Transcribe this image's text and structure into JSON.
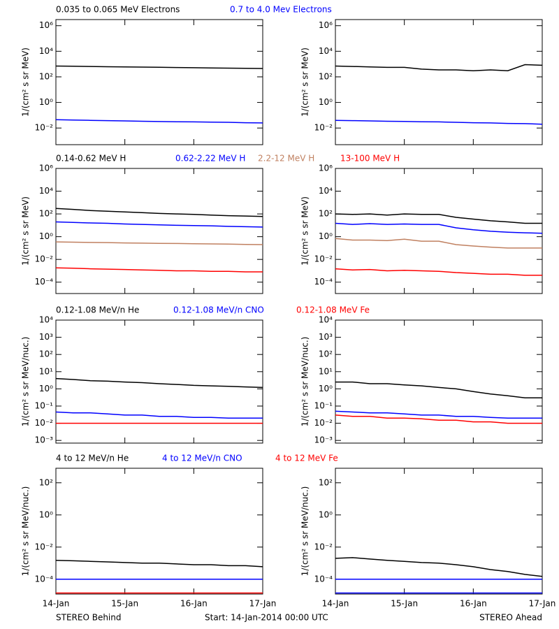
{
  "chart_data": [
    {
      "type": "line",
      "y_label": "1/(cm² s sr MeV)",
      "log_y": true,
      "ylim": [
        0.0005,
        3000000
      ],
      "yticks": [
        {
          "value": 0.01,
          "label": "10⁻²"
        },
        {
          "value": 1,
          "label": "10⁰"
        },
        {
          "value": 100,
          "label": "10²"
        },
        {
          "value": 10000,
          "label": "10⁴"
        },
        {
          "value": 1000000,
          "label": "10⁶"
        }
      ],
      "xlim": [
        0,
        3
      ],
      "xticks": [
        0,
        1,
        2,
        3
      ],
      "x": [
        0,
        0.25,
        0.5,
        0.75,
        1,
        1.25,
        1.5,
        1.75,
        2,
        2.25,
        2.5,
        2.75,
        3
      ],
      "series": [
        {
          "name": "0.035 to 0.065 MeV Electrons",
          "color": "#000000",
          "values": [
            700,
            680,
            650,
            620,
            600,
            580,
            560,
            540,
            520,
            500,
            480,
            460,
            450
          ]
        },
        {
          "name": "0.7 to 4.0 Mev Electrons",
          "color": "#0000ff",
          "values": [
            0.045,
            0.042,
            0.04,
            0.038,
            0.036,
            0.034,
            0.032,
            0.031,
            0.03,
            0.029,
            0.028,
            0.026,
            0.025
          ]
        }
      ]
    },
    {
      "type": "line",
      "y_label": "1/(cm² s sr MeV)",
      "log_y": true,
      "ylim": [
        0.0005,
        3000000
      ],
      "yticks": [
        {
          "value": 0.01,
          "label": "10⁻²"
        },
        {
          "value": 1,
          "label": "10⁰"
        },
        {
          "value": 100,
          "label": "10²"
        },
        {
          "value": 10000,
          "label": "10⁴"
        },
        {
          "value": 1000000,
          "label": "10⁶"
        }
      ],
      "xlim": [
        0,
        3
      ],
      "xticks": [
        0,
        1,
        2,
        3
      ],
      "x": [
        0,
        0.25,
        0.5,
        0.75,
        1,
        1.25,
        1.5,
        1.75,
        2,
        2.25,
        2.5,
        2.75,
        3
      ],
      "series": [
        {
          "color": "#000000",
          "values": [
            700,
            650,
            600,
            550,
            550,
            400,
            350,
            350,
            300,
            350,
            300,
            900,
            800
          ]
        },
        {
          "color": "#0000ff",
          "values": [
            0.04,
            0.038,
            0.036,
            0.034,
            0.033,
            0.031,
            0.03,
            0.028,
            0.026,
            0.025,
            0.023,
            0.022,
            0.02
          ]
        }
      ]
    },
    {
      "type": "line",
      "y_label": "1/(cm² s sr MeV)",
      "log_y": true,
      "ylim": [
        1e-05,
        1000000
      ],
      "yticks": [
        {
          "value": 0.0001,
          "label": "10⁻⁴"
        },
        {
          "value": 0.01,
          "label": "10⁻²"
        },
        {
          "value": 1,
          "label": "10⁰"
        },
        {
          "value": 100,
          "label": "10²"
        },
        {
          "value": 10000,
          "label": "10⁴"
        },
        {
          "value": 1000000,
          "label": "10⁶"
        }
      ],
      "xlim": [
        0,
        3
      ],
      "xticks": [
        0,
        1,
        2,
        3
      ],
      "x": [
        0,
        0.25,
        0.5,
        0.75,
        1,
        1.25,
        1.5,
        1.75,
        2,
        2.25,
        2.5,
        2.75,
        3
      ],
      "series": [
        {
          "name": "0.14-0.62 MeV H",
          "color": "#000000",
          "values": [
            300,
            250,
            200,
            170,
            150,
            130,
            110,
            100,
            90,
            80,
            70,
            65,
            60
          ]
        },
        {
          "name": "0.62-2.22 MeV H",
          "color": "#0000ff",
          "values": [
            20,
            18,
            16,
            15,
            13,
            12,
            11,
            10,
            9.5,
            9,
            8,
            7.5,
            7
          ]
        },
        {
          "name": "2.2-12 MeV H",
          "color": "#c08060",
          "values": [
            0.35,
            0.33,
            0.31,
            0.3,
            0.28,
            0.27,
            0.26,
            0.25,
            0.24,
            0.23,
            0.22,
            0.21,
            0.2
          ]
        },
        {
          "name": "13-100 MeV H",
          "color": "#ff0000",
          "values": [
            0.0018,
            0.0017,
            0.0015,
            0.0014,
            0.0013,
            0.0012,
            0.0011,
            0.001,
            0.001,
            0.0009,
            0.0009,
            0.0008,
            0.0008
          ]
        }
      ]
    },
    {
      "type": "line",
      "y_label": "1/(cm² s sr MeV)",
      "log_y": true,
      "ylim": [
        1e-05,
        1000000
      ],
      "yticks": [
        {
          "value": 0.0001,
          "label": "10⁻⁴"
        },
        {
          "value": 0.01,
          "label": "10⁻²"
        },
        {
          "value": 1,
          "label": "10⁰"
        },
        {
          "value": 100,
          "label": "10²"
        },
        {
          "value": 10000,
          "label": "10⁴"
        },
        {
          "value": 1000000,
          "label": "10⁶"
        }
      ],
      "xlim": [
        0,
        3
      ],
      "xticks": [
        0,
        1,
        2,
        3
      ],
      "x": [
        0,
        0.25,
        0.5,
        0.75,
        1,
        1.25,
        1.5,
        1.75,
        2,
        2.25,
        2.5,
        2.75,
        3
      ],
      "series": [
        {
          "color": "#000000",
          "values": [
            100,
            90,
            100,
            80,
            100,
            90,
            90,
            50,
            35,
            25,
            20,
            15,
            15
          ]
        },
        {
          "color": "#0000ff",
          "values": [
            15,
            12,
            14,
            12,
            13,
            12,
            12,
            6,
            4,
            3,
            2.5,
            2.2,
            2
          ]
        },
        {
          "color": "#c08060",
          "values": [
            0.7,
            0.5,
            0.5,
            0.45,
            0.6,
            0.4,
            0.4,
            0.2,
            0.15,
            0.12,
            0.1,
            0.1,
            0.1
          ]
        },
        {
          "color": "#ff0000",
          "values": [
            0.0015,
            0.0012,
            0.0013,
            0.001,
            0.0011,
            0.001,
            0.0009,
            0.0007,
            0.0006,
            0.0005,
            0.0005,
            0.0004,
            0.0004
          ]
        }
      ]
    },
    {
      "type": "line",
      "y_label": "1/(cm² s sr MeV/nuc.)",
      "log_y": true,
      "ylim": [
        0.0007,
        10000
      ],
      "yticks": [
        {
          "value": 0.001,
          "label": "10⁻³"
        },
        {
          "value": 0.01,
          "label": "10⁻²"
        },
        {
          "value": 0.1,
          "label": "10⁻¹"
        },
        {
          "value": 1,
          "label": "10⁰"
        },
        {
          "value": 10,
          "label": "10¹"
        },
        {
          "value": 100,
          "label": "10²"
        },
        {
          "value": 1000,
          "label": "10³"
        },
        {
          "value": 10000,
          "label": "10⁴"
        }
      ],
      "xlim": [
        0,
        3
      ],
      "xticks": [
        0,
        1,
        2,
        3
      ],
      "x": [
        0,
        0.25,
        0.5,
        0.75,
        1,
        1.25,
        1.5,
        1.75,
        2,
        2.25,
        2.5,
        2.75,
        3
      ],
      "series": [
        {
          "name": "0.12-1.08 MeV/n He",
          "color": "#000000",
          "values": [
            4,
            3.5,
            3,
            2.8,
            2.5,
            2.3,
            2,
            1.8,
            1.6,
            1.5,
            1.4,
            1.3,
            1.2
          ]
        },
        {
          "name": "0.12-1.08 MeV/n CNO",
          "color": "#0000ff",
          "values": [
            0.045,
            0.04,
            0.04,
            0.035,
            0.03,
            0.03,
            0.025,
            0.025,
            0.022,
            0.022,
            0.02,
            0.02,
            0.02
          ]
        },
        {
          "name": "0.12-1.08 MeV Fe",
          "color": "#ff0000",
          "values": [
            0.01,
            0.01,
            0.01,
            0.01,
            0.01,
            0.01,
            0.01,
            0.01,
            0.01,
            0.01,
            0.01,
            0.01,
            0.01
          ]
        }
      ]
    },
    {
      "type": "line",
      "y_label": "1/(cm² s sr MeV/nuc.)",
      "log_y": true,
      "ylim": [
        0.0007,
        10000
      ],
      "yticks": [
        {
          "value": 0.001,
          "label": "10⁻³"
        },
        {
          "value": 0.01,
          "label": "10⁻²"
        },
        {
          "value": 0.1,
          "label": "10⁻¹"
        },
        {
          "value": 1,
          "label": "10⁰"
        },
        {
          "value": 10,
          "label": "10¹"
        },
        {
          "value": 100,
          "label": "10²"
        },
        {
          "value": 1000,
          "label": "10³"
        },
        {
          "value": 10000,
          "label": "10⁴"
        }
      ],
      "xlim": [
        0,
        3
      ],
      "xticks": [
        0,
        1,
        2,
        3
      ],
      "x": [
        0,
        0.25,
        0.5,
        0.75,
        1,
        1.25,
        1.5,
        1.75,
        2,
        2.25,
        2.5,
        2.75,
        3
      ],
      "series": [
        {
          "color": "#000000",
          "values": [
            2.5,
            2.5,
            2,
            2,
            1.7,
            1.5,
            1.2,
            1,
            0.7,
            0.5,
            0.4,
            0.3,
            0.3
          ]
        },
        {
          "color": "#0000ff",
          "values": [
            0.05,
            0.045,
            0.04,
            0.04,
            0.035,
            0.03,
            0.03,
            0.025,
            0.025,
            0.022,
            0.02,
            0.02,
            0.02
          ]
        },
        {
          "color": "#ff0000",
          "values": [
            0.03,
            0.025,
            0.025,
            0.02,
            0.02,
            0.018,
            0.015,
            0.015,
            0.012,
            0.012,
            0.01,
            0.01,
            0.01
          ]
        }
      ]
    },
    {
      "type": "line",
      "y_label": "1/(cm² s sr MeV/nuc.)",
      "log_y": true,
      "ylim": [
        1.2e-05,
        800
      ],
      "yticks": [
        {
          "value": 0.0001,
          "label": "10⁻⁴"
        },
        {
          "value": 0.01,
          "label": "10⁻²"
        },
        {
          "value": 1,
          "label": "10⁰"
        },
        {
          "value": 100,
          "label": "10²"
        }
      ],
      "xlim": [
        0,
        3
      ],
      "xticks": [
        {
          "value": 0,
          "label": "14-Jan"
        },
        {
          "value": 1,
          "label": "15-Jan"
        },
        {
          "value": 2,
          "label": "16-Jan"
        },
        {
          "value": 3,
          "label": "17-Jan"
        }
      ],
      "x": [
        0,
        0.25,
        0.5,
        0.75,
        1,
        1.25,
        1.5,
        1.75,
        2,
        2.25,
        2.5,
        2.75,
        3
      ],
      "series": [
        {
          "name": "4 to 12 MeV/n He",
          "color": "#000000",
          "values": [
            0.0015,
            0.0014,
            0.0013,
            0.0012,
            0.0011,
            0.001,
            0.001,
            0.0009,
            0.0008,
            0.0008,
            0.0007,
            0.0007,
            0.0006
          ]
        },
        {
          "name": "4 to 12 MeV/n CNO",
          "color": "#0000ff",
          "values": [
            0.0001,
            0.0001,
            0.0001,
            0.0001,
            0.0001,
            0.0001,
            0.0001,
            0.0001,
            0.0001,
            0.0001,
            0.0001,
            0.0001,
            0.0001
          ]
        },
        {
          "name": "4 to 12 MeV Fe",
          "color": "#ff0000",
          "values": [
            1.4e-05,
            1.4e-05,
            1.4e-05,
            1.4e-05,
            1.4e-05,
            1.4e-05,
            1.4e-05,
            1.4e-05,
            1.4e-05,
            1.4e-05,
            1.4e-05,
            1.4e-05,
            1.4e-05
          ]
        }
      ]
    },
    {
      "type": "line",
      "y_label": "1/(cm² s sr MeV/nuc.)",
      "log_y": true,
      "ylim": [
        1.2e-05,
        800
      ],
      "yticks": [
        {
          "value": 0.0001,
          "label": "10⁻⁴"
        },
        {
          "value": 0.01,
          "label": "10⁻²"
        },
        {
          "value": 1,
          "label": "10⁰"
        },
        {
          "value": 100,
          "label": "10²"
        }
      ],
      "xlim": [
        0,
        3
      ],
      "xticks": [
        {
          "value": 0,
          "label": "14-Jan"
        },
        {
          "value": 1,
          "label": "15-Jan"
        },
        {
          "value": 2,
          "label": "16-Jan"
        },
        {
          "value": 3,
          "label": "17-Jan"
        }
      ],
      "x": [
        0,
        0.25,
        0.5,
        0.75,
        1,
        1.25,
        1.5,
        1.75,
        2,
        2.25,
        2.5,
        2.75,
        3
      ],
      "series": [
        {
          "color": "#000000",
          "values": [
            0.002,
            0.0022,
            0.0018,
            0.0015,
            0.0013,
            0.0011,
            0.001,
            0.0008,
            0.0006,
            0.0004,
            0.0003,
            0.0002,
            0.00015
          ]
        },
        {
          "color": "#0000ff",
          "values": [
            0.0001,
            0.0001,
            0.0001,
            0.0001,
            0.0001,
            0.0001,
            0.0001,
            0.0001,
            0.0001,
            0.0001,
            0.0001,
            0.0001,
            0.0001
          ]
        },
        {
          "color": "#0000ff",
          "values": [
            1.4e-05,
            1.4e-05,
            1.4e-05,
            1.4e-05,
            1.4e-05,
            1.4e-05,
            1.4e-05,
            1.4e-05,
            1.4e-05,
            1.4e-05,
            1.4e-05,
            1.4e-05,
            1.4e-05
          ]
        }
      ]
    }
  ],
  "footer": {
    "left": "STEREO Behind",
    "center": "Start: 14-Jan-2014 00:00 UTC",
    "right": "STEREO Ahead"
  }
}
